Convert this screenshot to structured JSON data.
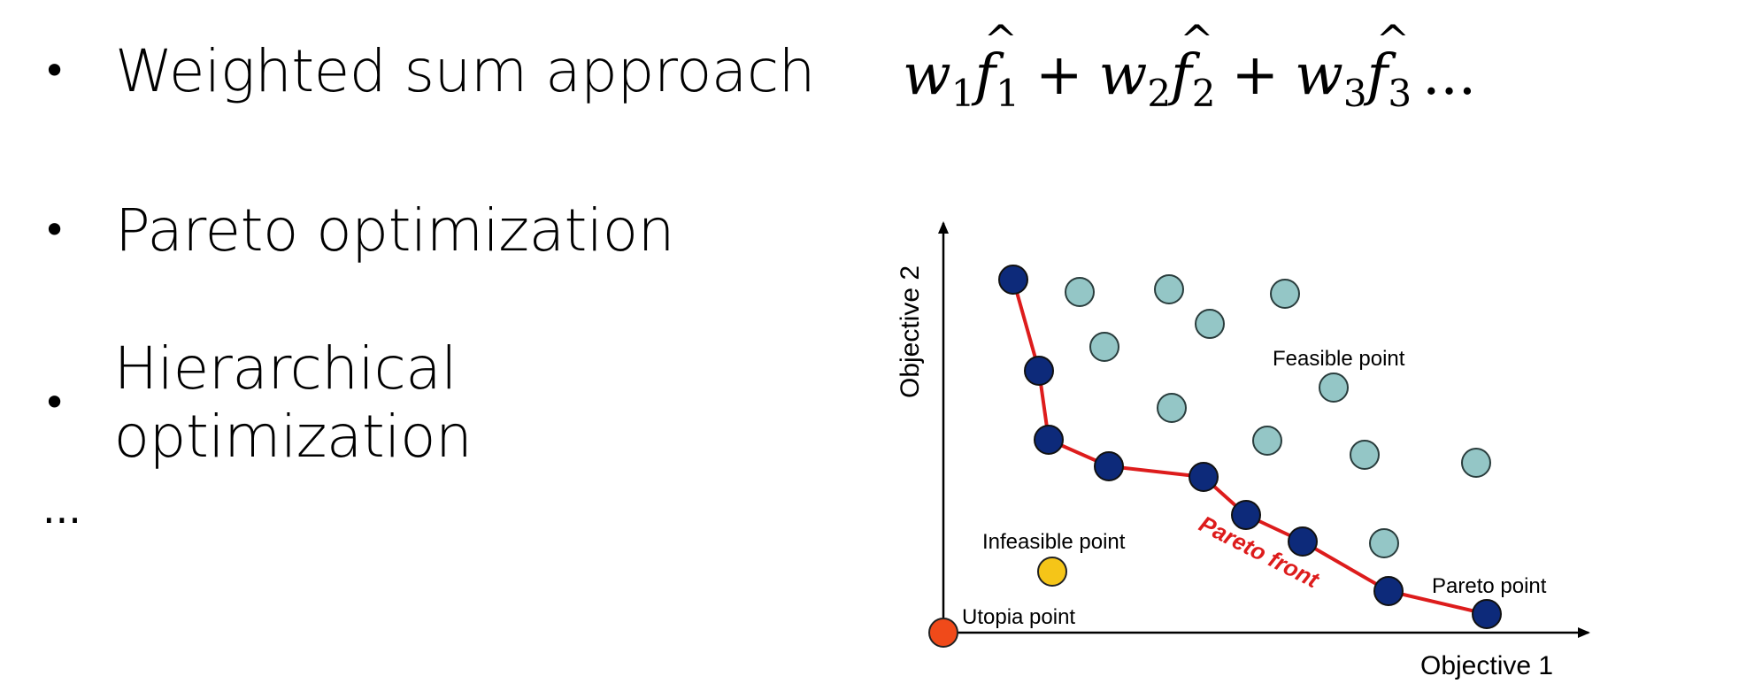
{
  "bullets": [
    {
      "text": "Weighted sum approach"
    },
    {
      "text": "Pareto optimization"
    },
    {
      "text": "Hierarchical optimization"
    }
  ],
  "bullet_symbol": "•",
  "ellipsis": "...",
  "formula": {
    "terms": [
      {
        "w": "w",
        "wsub": "1",
        "f": "f",
        "fsub": "1"
      },
      {
        "w": "w",
        "wsub": "2",
        "f": "f",
        "fsub": "2"
      },
      {
        "w": "w",
        "wsub": "3",
        "f": "f",
        "fsub": "3"
      }
    ],
    "op": "+",
    "tail": "..."
  },
  "diagram": {
    "xlabel": "Objective 1",
    "ylabel": "Objective 2",
    "labels": {
      "feasible": "Feasible point",
      "infeasible": "Infeasible point",
      "utopia": "Utopia point",
      "pareto_point": "Pareto point",
      "pareto_front": "Pareto front"
    },
    "colors": {
      "pareto": "#0d2a7a",
      "feasible": "#94c6c6",
      "infeasible": "#f5c518",
      "utopia": "#f04a1a",
      "front_line": "#dd1c1c",
      "front_text": "#dd1c1c"
    }
  }
}
